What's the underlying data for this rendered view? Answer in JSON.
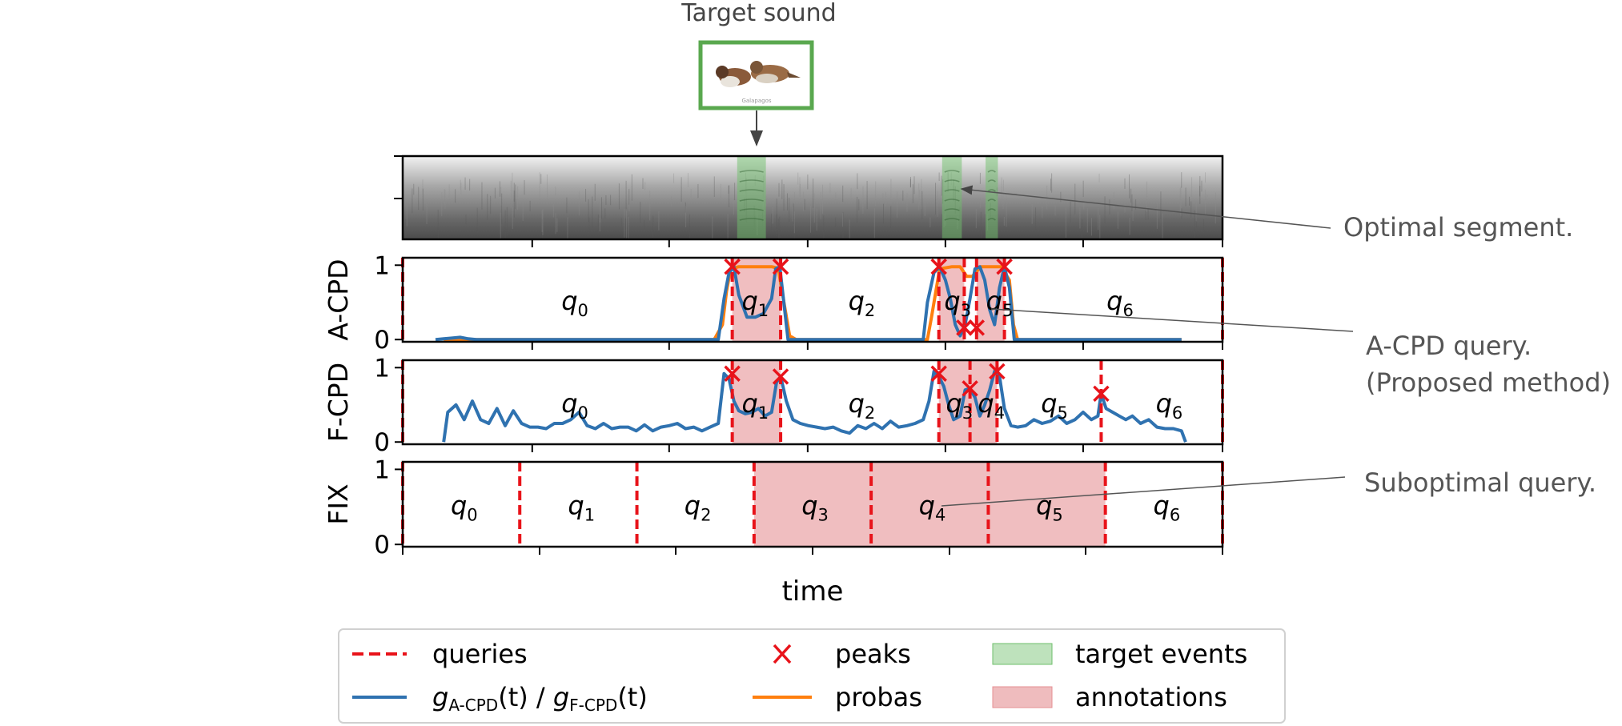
{
  "colors": {
    "query": "#e8131a",
    "curve": "#2f72b0",
    "proba": "#ff7f0e",
    "peak": "#e8131a",
    "target_event": "#6fbf6b",
    "annotation": "#e58f93",
    "callout": "#555555",
    "thumb_border": "#5aa84f"
  },
  "header": {
    "target_sound_label": "Target sound"
  },
  "thumbnail": {
    "image_caption": "Galapagos"
  },
  "callouts": {
    "optimal": "Optimal segment.",
    "acpd_line1": "A-CPD query.",
    "acpd_line2": "(Proposed method)",
    "suboptimal": "Suboptimal query."
  },
  "xlabel": "time",
  "legend": {
    "queries": "queries",
    "peaks": "peaks",
    "target_events": "target events",
    "g_label": "g",
    "g_sub1": "A-CPD",
    "g_mid": "(t) / ",
    "g_sub2": "F-CPD",
    "g_end": "(t)",
    "probas": "probas",
    "annotations": "annotations"
  },
  "chart_data": [
    {
      "type": "heatmap",
      "name": "spectrogram",
      "x_range": [
        0,
        1
      ],
      "target_events": [
        [
          0.408,
          0.443
        ],
        [
          0.658,
          0.682
        ],
        [
          0.711,
          0.726
        ]
      ]
    },
    {
      "type": "line",
      "ylabel": "A-CPD",
      "yticks": [
        0,
        1
      ],
      "ylim": [
        -0.03,
        1.1
      ],
      "x_range": [
        0,
        1
      ],
      "queries": [
        0,
        0.402,
        0.461,
        0.654,
        0.685,
        0.7,
        0.734,
        1.0
      ],
      "annotations": [
        [
          0.402,
          0.461
        ],
        [
          0.654,
          0.685
        ],
        [
          0.7,
          0.734
        ]
      ],
      "segment_labels": [
        {
          "label": "q",
          "sub": "0",
          "x": 0.21,
          "y": 0.55
        },
        {
          "label": "q",
          "sub": "1",
          "x": 0.43,
          "y": 0.55
        },
        {
          "label": "q",
          "sub": "2",
          "x": 0.56,
          "y": 0.55
        },
        {
          "label": "q",
          "sub": "3",
          "x": 0.677,
          "y": 0.55
        },
        {
          "label": "q",
          "sub": "5",
          "x": 0.728,
          "y": 0.55
        },
        {
          "label": "q",
          "sub": "6",
          "x": 0.875,
          "y": 0.55
        }
      ],
      "series": [
        {
          "name": "probas",
          "x": [
            0.05,
            0.1,
            0.2,
            0.3,
            0.38,
            0.39,
            0.395,
            0.4,
            0.41,
            0.45,
            0.458,
            0.465,
            0.472,
            0.48,
            0.6,
            0.64,
            0.645,
            0.655,
            0.67,
            0.68,
            0.688,
            0.695,
            0.705,
            0.73,
            0.74,
            0.745,
            0.75,
            0.95
          ],
          "y": [
            0,
            0,
            0,
            0,
            0,
            0.2,
            0.65,
            0.95,
            0.98,
            0.98,
            0.96,
            0.5,
            0.05,
            0,
            0,
            0,
            0.3,
            0.95,
            0.98,
            0.98,
            0.85,
            0.85,
            0.98,
            0.98,
            0.8,
            0.2,
            0,
            0
          ]
        },
        {
          "name": "g",
          "x": [
            0.04,
            0.05,
            0.06,
            0.07,
            0.08,
            0.09,
            0.1,
            0.2,
            0.3,
            0.385,
            0.392,
            0.398,
            0.404,
            0.41,
            0.42,
            0.43,
            0.44,
            0.45,
            0.455,
            0.46,
            0.47,
            0.6,
            0.635,
            0.64,
            0.648,
            0.655,
            0.662,
            0.668,
            0.674,
            0.68,
            0.686,
            0.692,
            0.698,
            0.704,
            0.71,
            0.716,
            0.722,
            0.728,
            0.734,
            0.74,
            0.746,
            0.95
          ],
          "y": [
            0,
            0.01,
            0.02,
            0.03,
            0.01,
            0.0,
            0.0,
            0.0,
            0.0,
            0.0,
            0.55,
            0.9,
            0.98,
            0.6,
            0.3,
            0.3,
            0.35,
            0.55,
            0.95,
            0.98,
            0.0,
            0.0,
            0.0,
            0.5,
            0.9,
            0.98,
            0.8,
            0.55,
            0.2,
            0.05,
            0.2,
            0.55,
            0.95,
            0.98,
            0.8,
            0.4,
            0.2,
            0.7,
            0.98,
            0.7,
            0.0,
            0.0
          ]
        }
      ],
      "peaks": [
        [
          0.402,
          0.98
        ],
        [
          0.461,
          0.98
        ],
        [
          0.654,
          0.98
        ],
        [
          0.685,
          0.16
        ],
        [
          0.7,
          0.16
        ],
        [
          0.734,
          0.98
        ]
      ]
    },
    {
      "type": "line",
      "ylabel": "F-CPD",
      "yticks": [
        0,
        1
      ],
      "ylim": [
        -0.03,
        1.1
      ],
      "x_range": [
        0,
        1
      ],
      "queries": [
        0,
        0.402,
        0.461,
        0.654,
        0.692,
        0.725,
        0.852,
        1.0
      ],
      "annotations": [
        [
          0.402,
          0.461
        ],
        [
          0.654,
          0.692
        ],
        [
          0.692,
          0.725
        ]
      ],
      "segment_labels": [
        {
          "label": "q",
          "sub": "0",
          "x": 0.21,
          "y": 0.55
        },
        {
          "label": "q",
          "sub": "1",
          "x": 0.43,
          "y": 0.55
        },
        {
          "label": "q",
          "sub": "2",
          "x": 0.56,
          "y": 0.55
        },
        {
          "label": "q",
          "sub": "3",
          "x": 0.679,
          "y": 0.55
        },
        {
          "label": "q",
          "sub": "4",
          "x": 0.718,
          "y": 0.55
        },
        {
          "label": "q",
          "sub": "5",
          "x": 0.795,
          "y": 0.55
        },
        {
          "label": "q",
          "sub": "6",
          "x": 0.935,
          "y": 0.55
        }
      ],
      "series": [
        {
          "name": "g",
          "x": [
            0.05,
            0.055,
            0.065,
            0.075,
            0.085,
            0.095,
            0.105,
            0.115,
            0.125,
            0.135,
            0.145,
            0.155,
            0.165,
            0.175,
            0.185,
            0.195,
            0.205,
            0.215,
            0.225,
            0.235,
            0.245,
            0.255,
            0.265,
            0.275,
            0.285,
            0.295,
            0.305,
            0.315,
            0.325,
            0.335,
            0.345,
            0.355,
            0.365,
            0.375,
            0.385,
            0.392,
            0.398,
            0.404,
            0.41,
            0.418,
            0.426,
            0.434,
            0.442,
            0.45,
            0.456,
            0.461,
            0.468,
            0.476,
            0.485,
            0.495,
            0.505,
            0.515,
            0.525,
            0.535,
            0.545,
            0.555,
            0.565,
            0.575,
            0.585,
            0.595,
            0.605,
            0.615,
            0.625,
            0.635,
            0.642,
            0.648,
            0.654,
            0.66,
            0.666,
            0.672,
            0.68,
            0.686,
            0.692,
            0.698,
            0.704,
            0.71,
            0.716,
            0.722,
            0.728,
            0.734,
            0.742,
            0.75,
            0.76,
            0.77,
            0.78,
            0.79,
            0.8,
            0.81,
            0.82,
            0.83,
            0.84,
            0.848,
            0.852,
            0.858,
            0.866,
            0.874,
            0.882,
            0.89,
            0.9,
            0.91,
            0.92,
            0.93,
            0.94,
            0.95,
            0.955
          ],
          "y": [
            0.0,
            0.4,
            0.5,
            0.3,
            0.55,
            0.3,
            0.25,
            0.45,
            0.22,
            0.42,
            0.25,
            0.2,
            0.2,
            0.18,
            0.25,
            0.25,
            0.3,
            0.4,
            0.22,
            0.18,
            0.25,
            0.18,
            0.2,
            0.2,
            0.15,
            0.23,
            0.15,
            0.2,
            0.22,
            0.25,
            0.18,
            0.2,
            0.15,
            0.2,
            0.25,
            0.92,
            0.85,
            0.55,
            0.42,
            0.38,
            0.4,
            0.45,
            0.35,
            0.4,
            0.8,
            0.88,
            0.55,
            0.3,
            0.25,
            0.22,
            0.2,
            0.18,
            0.2,
            0.15,
            0.12,
            0.22,
            0.18,
            0.25,
            0.18,
            0.28,
            0.2,
            0.22,
            0.25,
            0.3,
            0.55,
            0.95,
            0.88,
            0.75,
            0.5,
            0.3,
            0.35,
            0.7,
            0.72,
            0.6,
            0.35,
            0.5,
            0.7,
            0.95,
            0.88,
            0.45,
            0.22,
            0.2,
            0.22,
            0.3,
            0.25,
            0.28,
            0.35,
            0.25,
            0.3,
            0.4,
            0.3,
            0.35,
            0.65,
            0.45,
            0.4,
            0.35,
            0.3,
            0.35,
            0.25,
            0.3,
            0.2,
            0.18,
            0.18,
            0.15,
            0.0
          ]
        }
      ],
      "peaks": [
        [
          0.402,
          0.92
        ],
        [
          0.461,
          0.88
        ],
        [
          0.654,
          0.92
        ],
        [
          0.692,
          0.72
        ],
        [
          0.725,
          0.95
        ],
        [
          0.852,
          0.65
        ]
      ]
    },
    {
      "type": "line",
      "ylabel": "FIX",
      "yticks": [
        0,
        1
      ],
      "ylim": [
        -0.03,
        1.1
      ],
      "x_range": [
        0,
        1
      ],
      "queries": [
        0,
        0.1428,
        0.2857,
        0.4286,
        0.5714,
        0.7143,
        0.8571,
        1.0
      ],
      "annotations": [
        [
          0.4286,
          0.5714
        ],
        [
          0.5714,
          0.7143
        ],
        [
          0.7143,
          0.8571
        ]
      ],
      "segment_labels": [
        {
          "label": "q",
          "sub": "0",
          "x": 0.075,
          "y": 0.55
        },
        {
          "label": "q",
          "sub": "1",
          "x": 0.218,
          "y": 0.55
        },
        {
          "label": "q",
          "sub": "2",
          "x": 0.36,
          "y": 0.55
        },
        {
          "label": "q",
          "sub": "3",
          "x": 0.503,
          "y": 0.55
        },
        {
          "label": "q",
          "sub": "4",
          "x": 0.646,
          "y": 0.55
        },
        {
          "label": "q",
          "sub": "5",
          "x": 0.789,
          "y": 0.55
        },
        {
          "label": "q",
          "sub": "6",
          "x": 0.932,
          "y": 0.55
        }
      ],
      "series": [],
      "peaks": []
    }
  ]
}
